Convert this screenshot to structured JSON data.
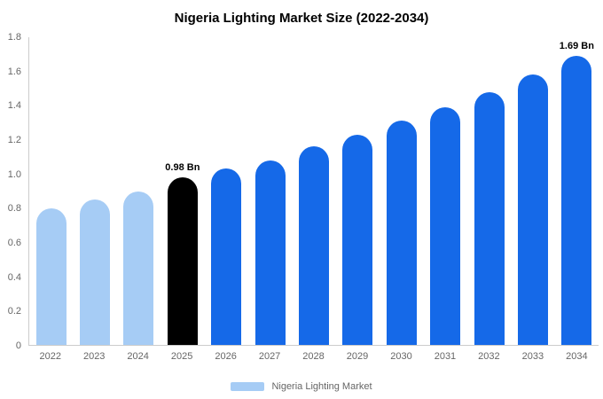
{
  "title": "Nigeria Lighting Market Size (2022-2034)",
  "legend": {
    "label": "Nigeria Lighting Market",
    "swatch_color": "#a6ccf5"
  },
  "colors": {
    "light_blue": "#a6ccf5",
    "blue": "#1569e8",
    "black": "#000000",
    "axis_line": "#cccccc",
    "tick_text": "#666666"
  },
  "chart_data": {
    "type": "bar",
    "title": "Nigeria Lighting Market Size (2022-2034)",
    "xlabel": "",
    "ylabel": "",
    "categories": [
      "2022",
      "2023",
      "2024",
      "2025",
      "2026",
      "2027",
      "2028",
      "2029",
      "2030",
      "2031",
      "2032",
      "2033",
      "2034"
    ],
    "values": [
      0.8,
      0.85,
      0.9,
      0.98,
      1.03,
      1.08,
      1.16,
      1.23,
      1.31,
      1.39,
      1.48,
      1.58,
      1.69
    ],
    "bar_colors": [
      "#a6ccf5",
      "#a6ccf5",
      "#a6ccf5",
      "#000000",
      "#1569e8",
      "#1569e8",
      "#1569e8",
      "#1569e8",
      "#1569e8",
      "#1569e8",
      "#1569e8",
      "#1569e8",
      "#1569e8"
    ],
    "bar_labels": [
      "",
      "",
      "",
      "0.98 Bn",
      "",
      "",
      "",
      "",
      "",
      "",
      "",
      "",
      "1.69 Bn"
    ],
    "ylim": [
      0,
      1.8
    ],
    "yticks": [
      0,
      0.2,
      0.4,
      0.6,
      0.8,
      1.0,
      1.2,
      1.4,
      1.6,
      1.8
    ],
    "ytick_labels": [
      "0",
      "0.2",
      "0.4",
      "0.6",
      "0.8",
      "1.0",
      "1.2",
      "1.4",
      "1.6",
      "1.8"
    ],
    "grid": false,
    "legend_position": "bottom",
    "legend_entries": [
      "Nigeria Lighting Market"
    ]
  }
}
